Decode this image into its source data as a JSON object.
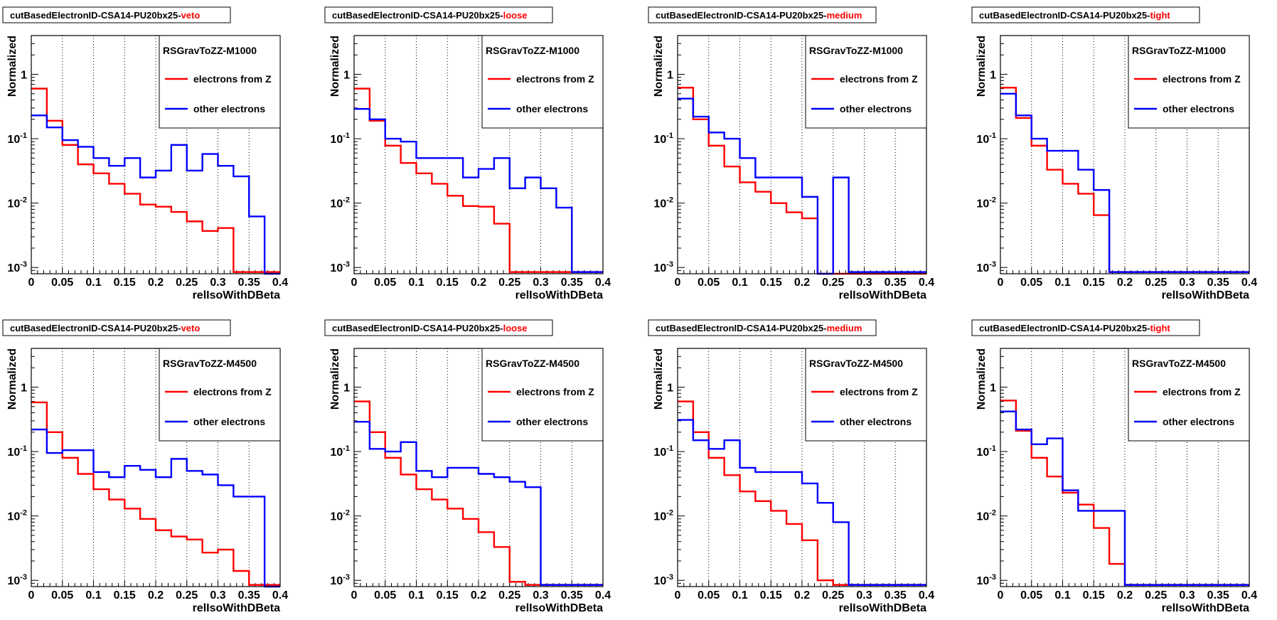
{
  "page_color": "#ffffff",
  "colors": {
    "electrons_from_z": "#ff0000",
    "other_electrons": "#0000ff",
    "axis": "#000000",
    "grid": "#000000"
  },
  "axis": {
    "xlabel": "relIsoWithDBeta",
    "ylabel": "Normalized",
    "x_ticks": [
      "0",
      "0.05",
      "0.1",
      "0.15",
      "0.2",
      "0.25",
      "0.3",
      "0.35",
      "0.4"
    ],
    "y_ticks": [
      {
        "base": "10",
        "exp": "-3"
      },
      {
        "base": "10",
        "exp": "-2"
      },
      {
        "base": "10",
        "exp": "-1"
      },
      {
        "base": "1",
        "exp": ""
      }
    ]
  },
  "chart_data": [
    {
      "type": "line",
      "title_prefix": "cutBasedElectronID-CSA14-PU20bx25-",
      "title_suffix": "veto",
      "xlim": [
        0,
        0.4
      ],
      "ylim": [
        0.0008,
        4
      ],
      "yscale": "log",
      "grid_x": true,
      "legend": "top-right",
      "legend_header": "RSGravToZZ-M1000",
      "bin_width": 0.025,
      "series": [
        {
          "name": "electrons from Z",
          "color": "#ff0000",
          "values": [
            0.6,
            0.19,
            0.08,
            0.04,
            0.029,
            0.02,
            0.014,
            0.0095,
            0.0088,
            0.0073,
            0.0052,
            0.0037,
            0.0041,
            0.00085,
            0.00085,
            0.00085
          ]
        },
        {
          "name": "other electrons",
          "color": "#0000ff",
          "values": [
            0.23,
            0.15,
            0.095,
            0.075,
            0.05,
            0.038,
            0.05,
            0.025,
            0.032,
            0.08,
            0.032,
            0.058,
            0.038,
            0.026,
            0.0062,
            0.0008
          ]
        }
      ]
    },
    {
      "type": "line",
      "title_prefix": "cutBasedElectronID-CSA14-PU20bx25-",
      "title_suffix": "loose",
      "xlim": [
        0,
        0.4
      ],
      "ylim": [
        0.0008,
        4
      ],
      "yscale": "log",
      "grid_x": true,
      "legend": "top-right",
      "legend_header": "RSGravToZZ-M1000",
      "bin_width": 0.025,
      "series": [
        {
          "name": "electrons from Z",
          "color": "#ff0000",
          "values": [
            0.6,
            0.19,
            0.078,
            0.042,
            0.029,
            0.02,
            0.013,
            0.009,
            0.0088,
            0.0048,
            0.00085,
            0.00085,
            0.00085,
            0.00085,
            0.00085,
            0.00085
          ]
        },
        {
          "name": "other electrons",
          "color": "#0000ff",
          "values": [
            0.29,
            0.2,
            0.1,
            0.09,
            0.05,
            0.05,
            0.05,
            0.025,
            0.034,
            0.05,
            0.017,
            0.025,
            0.017,
            0.0085,
            0.00085,
            0.00085
          ]
        }
      ]
    },
    {
      "type": "line",
      "title_prefix": "cutBasedElectronID-CSA14-PU20bx25-",
      "title_suffix": "medium",
      "xlim": [
        0,
        0.4
      ],
      "ylim": [
        0.0008,
        4
      ],
      "yscale": "log",
      "grid_x": true,
      "legend": "top-right",
      "legend_header": "RSGravToZZ-M1000",
      "bin_width": 0.025,
      "series": [
        {
          "name": "electrons from Z",
          "color": "#ff0000",
          "values": [
            0.62,
            0.2,
            0.078,
            0.037,
            0.021,
            0.015,
            0.01,
            0.0072,
            0.0058,
            0.0008,
            0.0008,
            0.0008,
            0.0008,
            0.0008,
            0.0008,
            0.0008
          ]
        },
        {
          "name": "other electrons",
          "color": "#0000ff",
          "values": [
            0.42,
            0.22,
            0.125,
            0.1,
            0.05,
            0.025,
            0.025,
            0.025,
            0.0125,
            0.0008,
            0.025,
            0.00085,
            0.00085,
            0.00085,
            0.00085,
            0.00085
          ]
        }
      ]
    },
    {
      "type": "line",
      "title_prefix": "cutBasedElectronID-CSA14-PU20bx25-",
      "title_suffix": "tight",
      "xlim": [
        0,
        0.4
      ],
      "ylim": [
        0.0008,
        4
      ],
      "yscale": "log",
      "grid_x": true,
      "legend": "top-right",
      "legend_header": "RSGravToZZ-M1000",
      "bin_width": 0.025,
      "series": [
        {
          "name": "electrons from Z",
          "color": "#ff0000",
          "values": [
            0.62,
            0.21,
            0.078,
            0.033,
            0.02,
            0.014,
            0.0065,
            0.00085,
            0.00085,
            0.00085,
            0.00085,
            0.00085,
            0.00085,
            0.00085,
            0.00085,
            0.00085
          ]
        },
        {
          "name": "other electrons",
          "color": "#0000ff",
          "values": [
            0.5,
            0.23,
            0.1,
            0.065,
            0.065,
            0.033,
            0.016,
            0.00085,
            0.00085,
            0.00085,
            0.00085,
            0.00085,
            0.00085,
            0.00085,
            0.00085,
            0.00085
          ]
        }
      ]
    },
    {
      "type": "line",
      "title_prefix": "cutBasedElectronID-CSA14-PU20bx25-",
      "title_suffix": "veto",
      "xlim": [
        0,
        0.4
      ],
      "ylim": [
        0.0008,
        4
      ],
      "yscale": "log",
      "grid_x": true,
      "legend": "top-right",
      "legend_header": "RSGravToZZ-M4500",
      "bin_width": 0.025,
      "series": [
        {
          "name": "electrons from Z",
          "color": "#ff0000",
          "values": [
            0.58,
            0.2,
            0.08,
            0.045,
            0.026,
            0.018,
            0.013,
            0.009,
            0.006,
            0.0048,
            0.0043,
            0.0027,
            0.003,
            0.0014,
            0.00085,
            0.00085
          ]
        },
        {
          "name": "other electrons",
          "color": "#0000ff",
          "values": [
            0.22,
            0.095,
            0.105,
            0.105,
            0.048,
            0.04,
            0.06,
            0.052,
            0.04,
            0.077,
            0.05,
            0.044,
            0.03,
            0.02,
            0.02,
            0.0008
          ]
        }
      ]
    },
    {
      "type": "line",
      "title_prefix": "cutBasedElectronID-CSA14-PU20bx25-",
      "title_suffix": "loose",
      "xlim": [
        0,
        0.4
      ],
      "ylim": [
        0.0008,
        4
      ],
      "yscale": "log",
      "grid_x": true,
      "legend": "top-right",
      "legend_header": "RSGravToZZ-M4500",
      "bin_width": 0.025,
      "series": [
        {
          "name": "electrons from Z",
          "color": "#ff0000",
          "values": [
            0.6,
            0.2,
            0.08,
            0.044,
            0.026,
            0.018,
            0.013,
            0.009,
            0.0056,
            0.0033,
            0.00095,
            0.00085,
            0.00085,
            0.00085,
            0.00085,
            0.00085
          ]
        },
        {
          "name": "other electrons",
          "color": "#0000ff",
          "values": [
            0.29,
            0.11,
            0.1,
            0.14,
            0.05,
            0.04,
            0.056,
            0.056,
            0.045,
            0.04,
            0.034,
            0.028,
            0.00085,
            0.00085,
            0.00085,
            0.00085
          ]
        }
      ]
    },
    {
      "type": "line",
      "title_prefix": "cutBasedElectronID-CSA14-PU20bx25-",
      "title_suffix": "medium",
      "xlim": [
        0,
        0.4
      ],
      "ylim": [
        0.0008,
        4
      ],
      "yscale": "log",
      "grid_x": true,
      "legend": "top-right",
      "legend_header": "RSGravToZZ-M4500",
      "bin_width": 0.025,
      "series": [
        {
          "name": "electrons from Z",
          "color": "#ff0000",
          "values": [
            0.6,
            0.2,
            0.08,
            0.043,
            0.024,
            0.017,
            0.012,
            0.0075,
            0.0042,
            0.001,
            0.00085,
            0.00085,
            0.00085,
            0.00085,
            0.00085,
            0.00085
          ]
        },
        {
          "name": "other electrons",
          "color": "#0000ff",
          "values": [
            0.31,
            0.15,
            0.11,
            0.15,
            0.056,
            0.048,
            0.048,
            0.048,
            0.032,
            0.016,
            0.008,
            0.00085,
            0.00085,
            0.00085,
            0.00085,
            0.00085
          ]
        }
      ]
    },
    {
      "type": "line",
      "title_prefix": "cutBasedElectronID-CSA14-PU20bx25-",
      "title_suffix": "tight",
      "xlim": [
        0,
        0.4
      ],
      "ylim": [
        0.0008,
        4
      ],
      "yscale": "log",
      "grid_x": true,
      "legend": "top-right",
      "legend_header": "RSGravToZZ-M4500",
      "bin_width": 0.025,
      "series": [
        {
          "name": "electrons from Z",
          "color": "#ff0000",
          "values": [
            0.62,
            0.21,
            0.08,
            0.041,
            0.023,
            0.015,
            0.0065,
            0.0018,
            0.00085,
            0.00085,
            0.00085,
            0.00085,
            0.00085,
            0.00085,
            0.00085,
            0.00085
          ]
        },
        {
          "name": "other electrons",
          "color": "#0000ff",
          "values": [
            0.42,
            0.22,
            0.13,
            0.16,
            0.025,
            0.012,
            0.012,
            0.012,
            0.00085,
            0.00085,
            0.00085,
            0.00085,
            0.00085,
            0.00085,
            0.00085,
            0.00085
          ]
        }
      ]
    }
  ]
}
